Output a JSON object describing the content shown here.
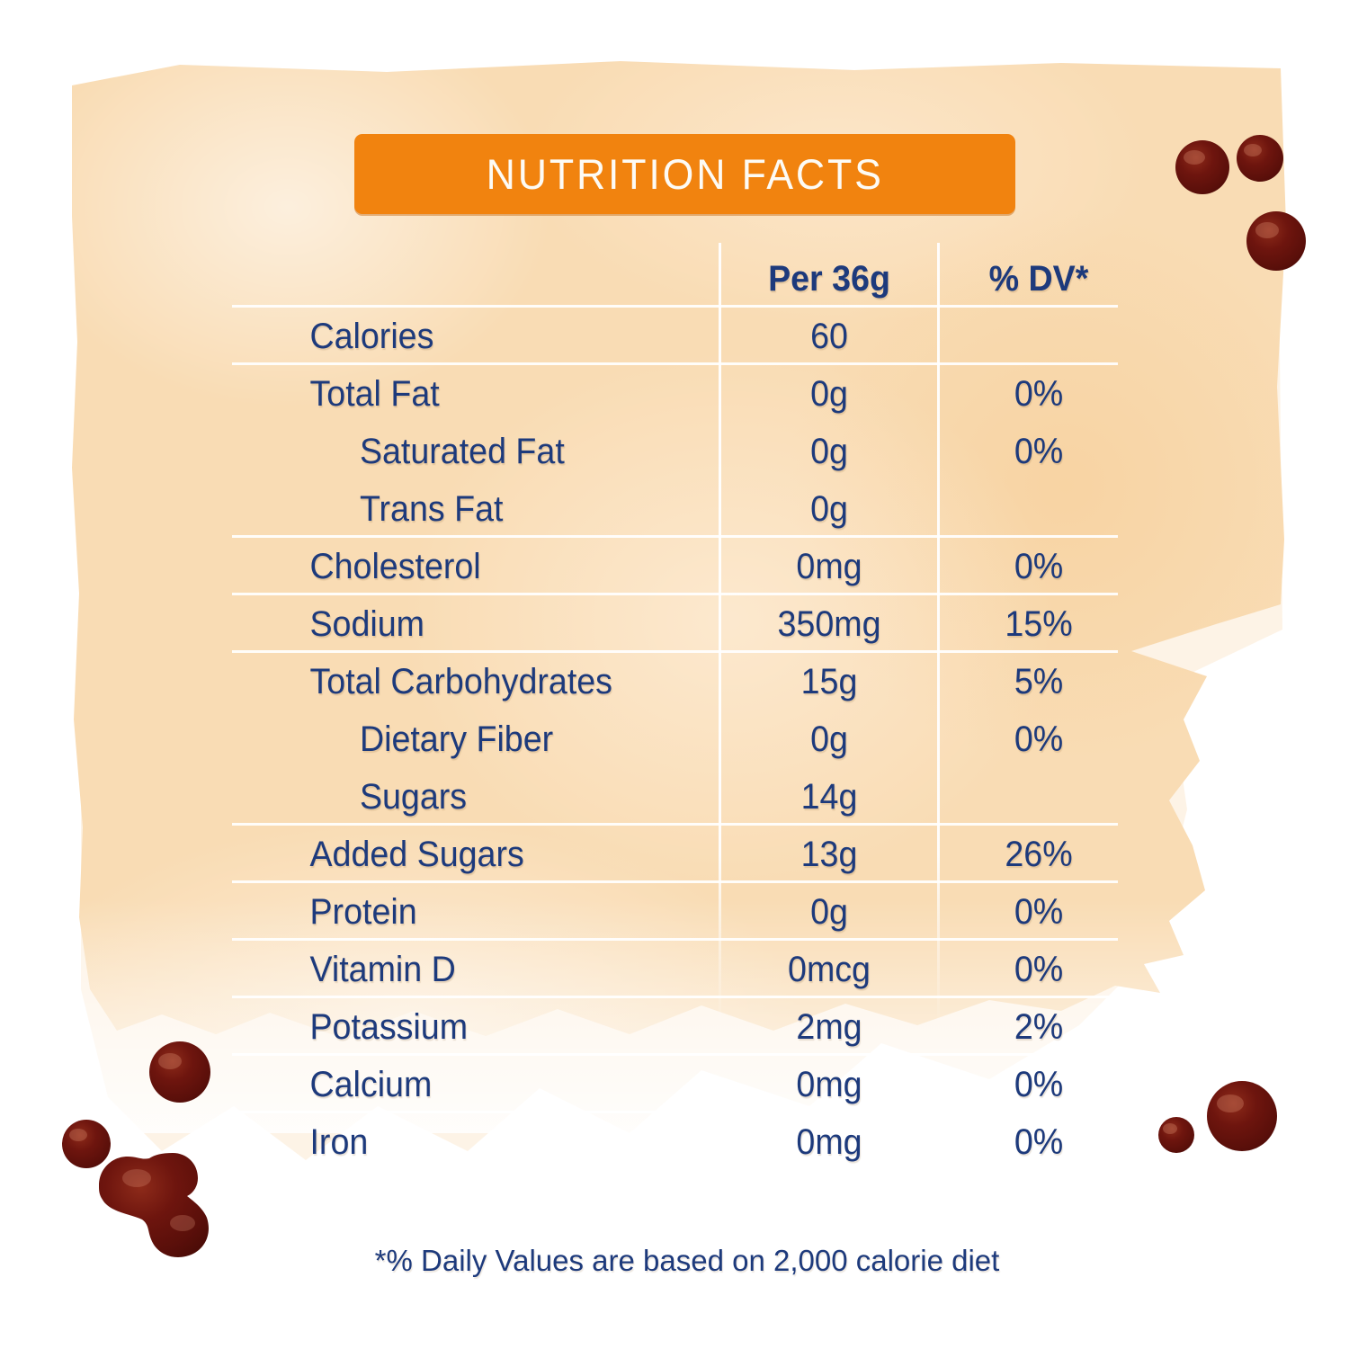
{
  "header": {
    "title": "NUTRITION FACTS"
  },
  "table": {
    "columns": {
      "serving": "Per 36g",
      "dv": "% DV*"
    },
    "rows": [
      {
        "label": "Calories",
        "value": "60",
        "dv": "",
        "indent": false,
        "line_below": true
      },
      {
        "label": "Total Fat",
        "value": "0g",
        "dv": "0%",
        "indent": false,
        "line_below": false
      },
      {
        "label": "Saturated Fat",
        "value": "0g",
        "dv": "0%",
        "indent": true,
        "line_below": false
      },
      {
        "label": "Trans Fat",
        "value": "0g",
        "dv": "",
        "indent": true,
        "line_below": true
      },
      {
        "label": "Cholesterol",
        "value": "0mg",
        "dv": "0%",
        "indent": false,
        "line_below": true
      },
      {
        "label": "Sodium",
        "value": "350mg",
        "dv": "15%",
        "indent": false,
        "line_below": true
      },
      {
        "label": "Total Carbohydrates",
        "value": "15g",
        "dv": "5%",
        "indent": false,
        "line_below": false
      },
      {
        "label": "Dietary Fiber",
        "value": "0g",
        "dv": "0%",
        "indent": true,
        "line_below": false
      },
      {
        "label": "Sugars",
        "value": "14g",
        "dv": "",
        "indent": true,
        "line_below": true
      },
      {
        "label": "Added Sugars",
        "value": "13g",
        "dv": "26%",
        "indent": false,
        "line_below": true
      },
      {
        "label": "Protein",
        "value": "0g",
        "dv": "0%",
        "indent": false,
        "line_below": true
      },
      {
        "label": "Vitamin D",
        "value": "0mcg",
        "dv": "0%",
        "indent": false,
        "line_below": true
      },
      {
        "label": "Potassium",
        "value": "2mg",
        "dv": "2%",
        "indent": false,
        "line_below": true
      },
      {
        "label": "Calcium",
        "value": "0mg",
        "dv": "0%",
        "indent": false,
        "line_below": true
      },
      {
        "label": "Iron",
        "value": "0mg",
        "dv": "0%",
        "indent": false,
        "line_below": false
      }
    ]
  },
  "footnote": "*% Daily Values are based on 2,000 calorie diet",
  "colors": {
    "accent_orange": "#F1830F",
    "text_navy": "#1D3A7C",
    "wash_peach": "#F9DCB4",
    "droplet_maroon": "#67130C"
  }
}
